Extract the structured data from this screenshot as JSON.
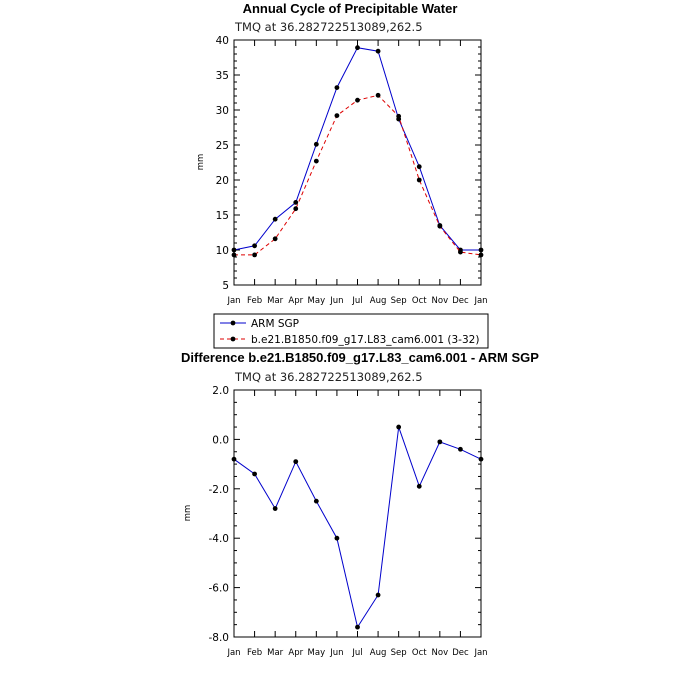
{
  "chart_data": [
    {
      "type": "line",
      "title": "Annual Cycle of Precipitable Water",
      "subtitle": "TMQ at 36.282722513089,262.5",
      "xlabel": "",
      "ylabel": "mm",
      "categories": [
        "Jan",
        "Feb",
        "Mar",
        "Apr",
        "May",
        "Jun",
        "Jul",
        "Aug",
        "Sep",
        "Oct",
        "Nov",
        "Dec",
        "Jan"
      ],
      "ylim": [
        5,
        40
      ],
      "yticks": [
        5,
        10,
        15,
        20,
        25,
        30,
        35,
        40
      ],
      "ytick_labels": [
        "5",
        "10",
        "15",
        "20",
        "25",
        "30",
        "35",
        "40"
      ],
      "grid": false,
      "legend": "bottom",
      "series": [
        {
          "name": "ARM SGP",
          "color": "#0000cc",
          "style": "solid",
          "values": [
            10.0,
            10.6,
            14.4,
            16.8,
            25.1,
            33.2,
            38.9,
            38.4,
            28.7,
            21.9,
            13.5,
            10.0,
            10.0
          ]
        },
        {
          "name": "b.e21.B1850.f09_g17.L83_cam6.001 (3-32)",
          "color": "#dd0000",
          "style": "dashed",
          "values": [
            9.3,
            9.3,
            11.6,
            15.9,
            22.7,
            29.2,
            31.4,
            32.1,
            29.1,
            20.0,
            13.4,
            9.7,
            9.3
          ]
        }
      ]
    },
    {
      "type": "line",
      "title": "Difference b.e21.B1850.f09_g17.L83_cam6.001 - ARM SGP",
      "subtitle": "TMQ at 36.282722513089,262.5",
      "xlabel": "",
      "ylabel": "mm",
      "categories": [
        "Jan",
        "Feb",
        "Mar",
        "Apr",
        "May",
        "Jun",
        "Jul",
        "Aug",
        "Sep",
        "Oct",
        "Nov",
        "Dec",
        "Jan"
      ],
      "ylim": [
        -8,
        2
      ],
      "yticks": [
        -8,
        -6,
        -4,
        -2,
        0,
        2
      ],
      "ytick_labels": [
        "-8.0",
        "-6.0",
        "-4.0",
        "-2.0",
        "0.0",
        "2.0"
      ],
      "grid": false,
      "series": [
        {
          "name": "",
          "color": "#0000cc",
          "style": "solid",
          "values": [
            -0.8,
            -1.4,
            -2.8,
            -0.9,
            -2.5,
            -4.0,
            -7.6,
            -6.3,
            0.5,
            -1.9,
            -0.1,
            -0.4,
            -0.8
          ]
        }
      ]
    }
  ]
}
